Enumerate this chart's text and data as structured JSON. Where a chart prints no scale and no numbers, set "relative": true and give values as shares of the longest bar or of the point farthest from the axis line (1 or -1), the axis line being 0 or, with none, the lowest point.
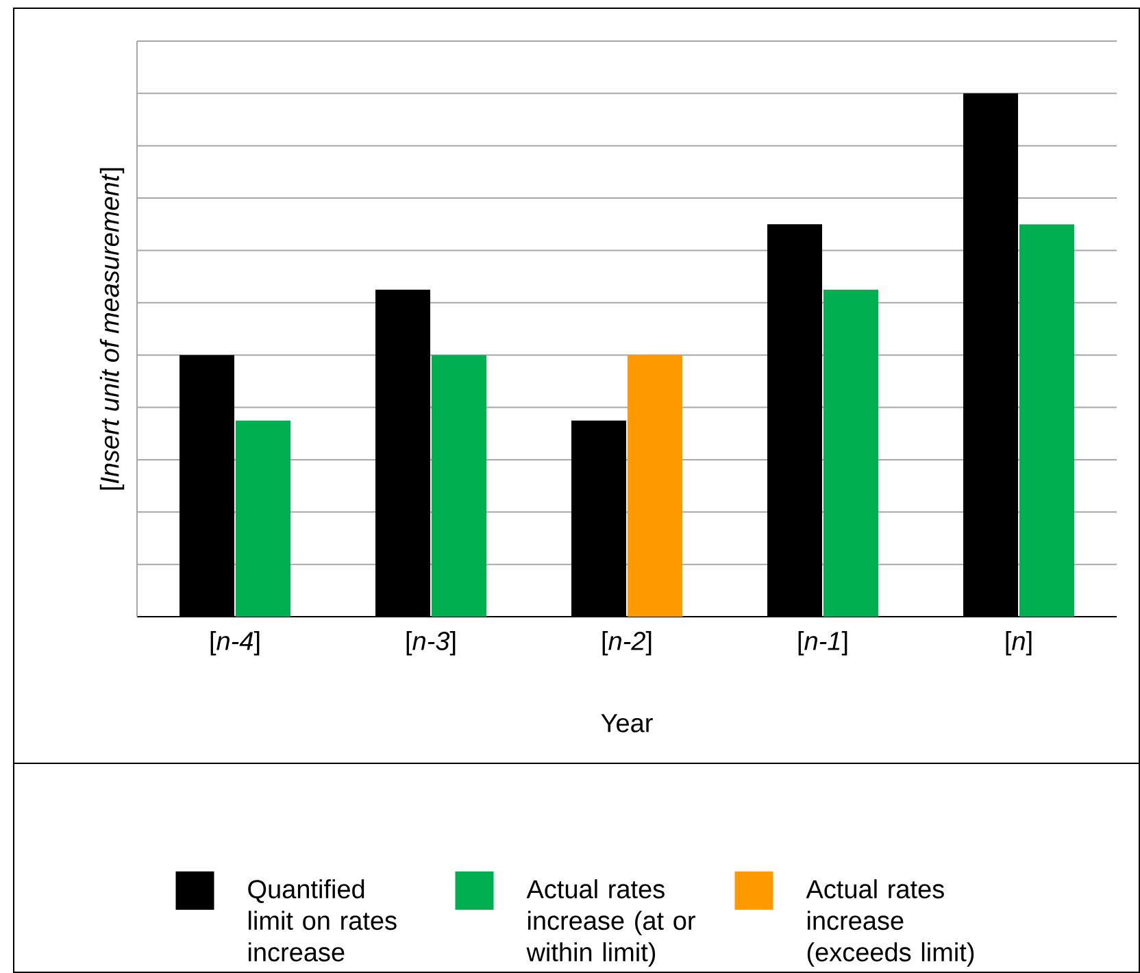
{
  "chart_data": {
    "type": "bar",
    "relative": true,
    "xlabel": "Year",
    "ylabel": "[*Insert unit of measurement*]",
    "categories": [
      "[*n-4*]",
      "[*n-3*]",
      "[*n-2*]",
      "[*n-1*]",
      "[*n*]"
    ],
    "series": [
      {
        "name": "Quantified limit on rates increase",
        "color": "#000000",
        "values": [
          0.5,
          0.625,
          0.375,
          0.75,
          1
        ]
      },
      {
        "name": "Actual rates increase (at or within limit)",
        "color": "#00b050",
        "values": [
          0.375,
          0.5,
          null,
          0.625,
          0.75
        ]
      },
      {
        "name": "Actual rates increase (exceeds limit)",
        "color": "#ff9900",
        "values": [
          null,
          null,
          0.5,
          null,
          null
        ]
      }
    ],
    "grid": "y",
    "legend": "bottom"
  }
}
